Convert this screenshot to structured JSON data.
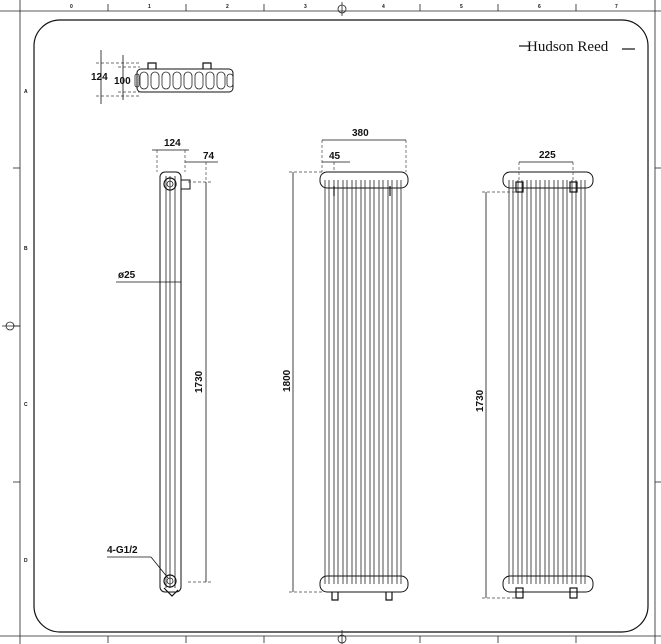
{
  "brand": {
    "name": "Hudson Reed"
  },
  "frame": {
    "col_labels": [
      "0",
      "1",
      "2",
      "3",
      "4",
      "5",
      "6",
      "7"
    ],
    "row_labels": [
      "A",
      "B",
      "C",
      "D"
    ]
  },
  "views": {
    "top": {
      "dim_outer": "124",
      "dim_inner": "100"
    },
    "side": {
      "dim_depth": "124",
      "dim_offset": "74",
      "dim_pipe": "ø25",
      "dim_height": "1730",
      "connection": "4-G1/2"
    },
    "front": {
      "dim_width": "380",
      "dim_pitch": "45",
      "dim_height": "1800"
    },
    "rear": {
      "dim_brackets": "225",
      "dim_height": "1730"
    }
  }
}
